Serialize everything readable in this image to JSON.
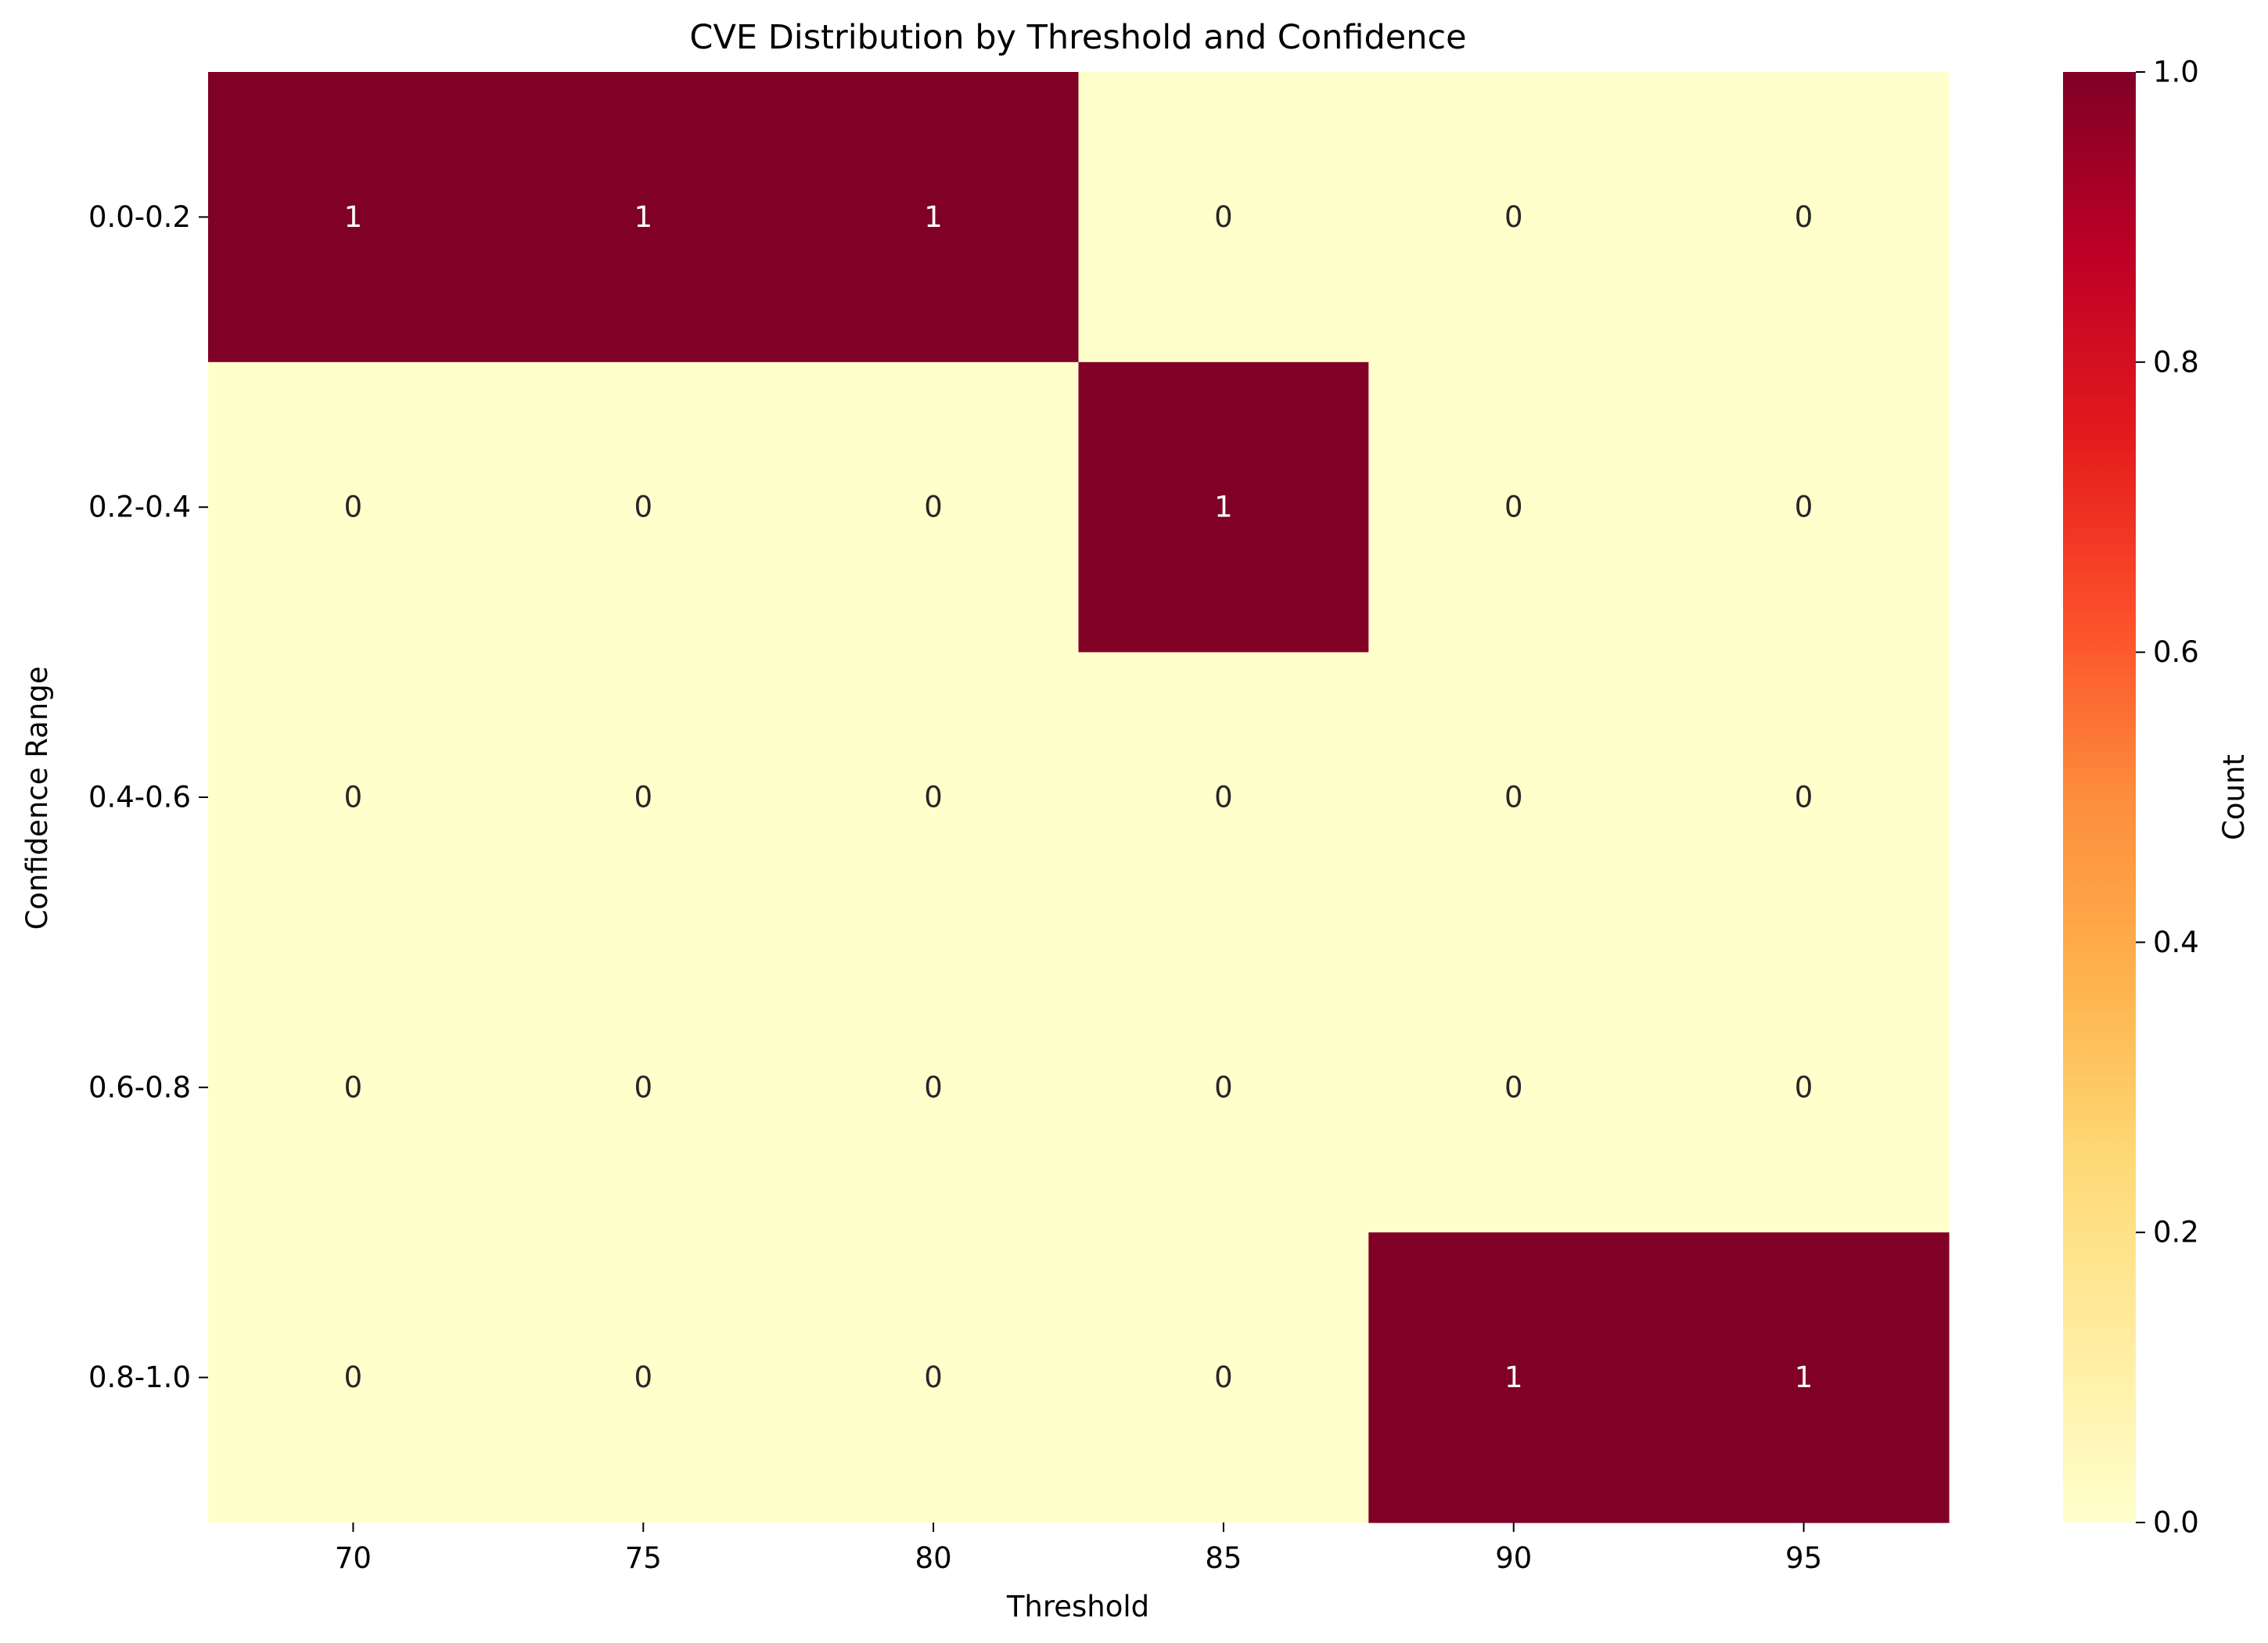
{
  "chart_data": {
    "type": "heatmap",
    "title": "CVE Distribution by Threshold and Confidence",
    "xlabel": "Threshold",
    "ylabel": "Confidence Range",
    "x_categories": [
      "70",
      "75",
      "80",
      "85",
      "90",
      "95"
    ],
    "y_categories": [
      "0.0-0.2",
      "0.2-0.4",
      "0.4-0.6",
      "0.6-0.8",
      "0.8-1.0"
    ],
    "values": [
      [
        1,
        1,
        1,
        0,
        0,
        0
      ],
      [
        0,
        0,
        0,
        1,
        0,
        0
      ],
      [
        0,
        0,
        0,
        0,
        0,
        0
      ],
      [
        0,
        0,
        0,
        0,
        0,
        0
      ],
      [
        0,
        0,
        0,
        0,
        1,
        1
      ]
    ],
    "colorbar": {
      "label": "Count",
      "range": [
        0,
        1
      ],
      "ticks": [
        "0.0",
        "0.2",
        "0.4",
        "0.6",
        "0.8",
        "1.0"
      ],
      "colormap": "YlOrRd",
      "low_color": "#ffffcc",
      "high_color": "#800026"
    },
    "annotations": true,
    "grid": false,
    "legend": "colorbar right"
  }
}
